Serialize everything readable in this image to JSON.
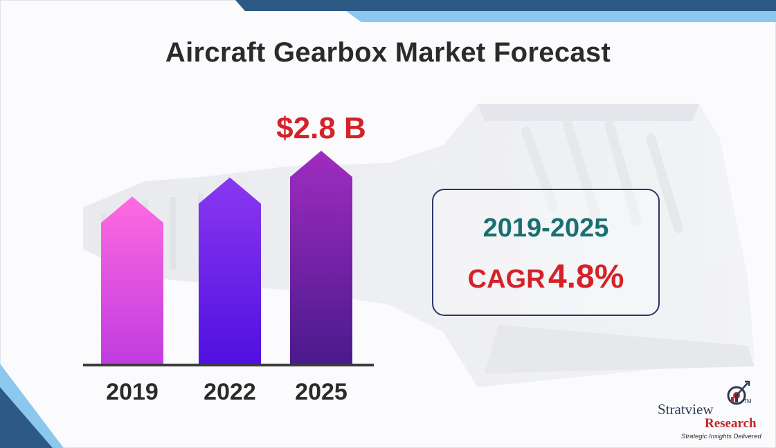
{
  "chart_data": {
    "type": "bar",
    "title": "Aircraft Gearbox Market Forecast",
    "categories": [
      "2019",
      "2022",
      "2025"
    ],
    "series": [
      {
        "values": [
          2.2,
          2.45,
          2.8
        ]
      }
    ],
    "data_labels": [
      null,
      null,
      "$2.8 B"
    ],
    "unit": "$ B",
    "colors": [
      [
        "#ff6ae0",
        "#c03ce0"
      ],
      [
        "#8a38f0",
        "#5010e0"
      ],
      [
        "#a02cc0",
        "#4a1a8c"
      ]
    ],
    "grid": false,
    "legend": "none"
  },
  "cagr": {
    "period": "2019-2025",
    "label": "CAGR",
    "value": "4.8%"
  },
  "brand": {
    "name": "Stratview",
    "trademark": "TM",
    "sub": "Research",
    "tagline": "Strategic Insights Delivered"
  },
  "colors": {
    "title": "#2b2b2b",
    "accent_red": "#d42228",
    "period_teal": "#1a7070",
    "frame_dark": "#2d5a85",
    "frame_light": "#8cc8ee"
  }
}
